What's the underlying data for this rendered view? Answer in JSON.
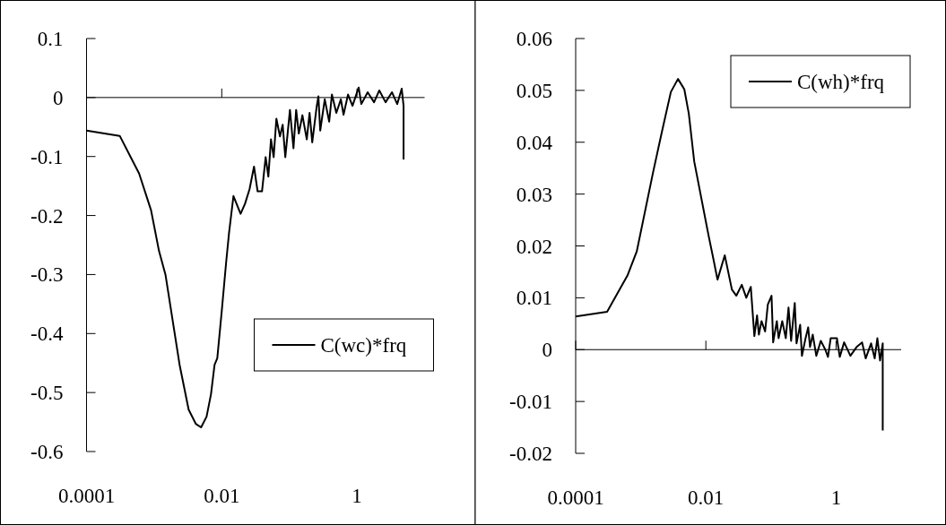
{
  "chart_data": [
    {
      "type": "line",
      "log": "x",
      "xlim": [
        0.0001,
        10
      ],
      "xticks": [
        0.0001,
        0.01,
        1
      ],
      "ylim": [
        -0.6,
        0.1
      ],
      "yticks": [
        -0.6,
        -0.5,
        -0.4,
        -0.3,
        -0.2,
        -0.1,
        0,
        0.1
      ],
      "legend": "bottom right",
      "series": [
        {
          "name": "C(wc)*frq",
          "color": "#000000",
          "x": [
            0.0001,
            0.00031,
            0.0006,
            0.0009,
            0.00118,
            0.00147,
            0.00238,
            0.00324,
            0.00413,
            0.00495,
            0.00596,
            0.00693,
            0.00783,
            0.00859,
            0.01,
            0.0116,
            0.0128,
            0.0149,
            0.019,
            0.0221,
            0.0258,
            0.03,
            0.0339,
            0.0394,
            0.0446,
            0.0489,
            0.0535,
            0.0586,
            0.0643,
            0.0726,
            0.0796,
            0.0871,
            0.102,
            0.115,
            0.126,
            0.138,
            0.156,
            0.181,
            0.199,
            0.218,
            0.254,
            0.269,
            0.286,
            0.334,
            0.388,
            0.426,
            0.495,
            0.578,
            0.633,
            0.738,
            0.859,
            1.06,
            1.16,
            1.44,
            1.79,
            2.14,
            2.65,
            3.29,
            3.94,
            4.59,
            4.89,
            4.89
          ],
          "values": [
            -0.056,
            -0.065,
            -0.129,
            -0.191,
            -0.26,
            -0.3,
            -0.453,
            -0.529,
            -0.553,
            -0.559,
            -0.541,
            -0.503,
            -0.453,
            -0.442,
            -0.362,
            -0.28,
            -0.23,
            -0.167,
            -0.197,
            -0.18,
            -0.155,
            -0.117,
            -0.159,
            -0.159,
            -0.101,
            -0.134,
            -0.071,
            -0.101,
            -0.036,
            -0.066,
            -0.046,
            -0.101,
            -0.021,
            -0.086,
            -0.021,
            -0.061,
            -0.03,
            -0.071,
            -0.026,
            -0.076,
            -0.015,
            0.002,
            -0.056,
            -0.003,
            -0.041,
            0.005,
            -0.026,
            -0.003,
            -0.029,
            0.005,
            -0.014,
            0.017,
            -0.011,
            0.009,
            -0.008,
            0.012,
            -0.008,
            0.009,
            -0.011,
            0.015,
            -0.014,
            -0.105
          ]
        }
      ]
    },
    {
      "type": "line",
      "log": "x",
      "xlim": [
        0.0001,
        10
      ],
      "xticks": [
        0.0001,
        0.01,
        1
      ],
      "ylim": [
        -0.02,
        0.06
      ],
      "yticks": [
        -0.02,
        -0.01,
        0,
        0.01,
        0.02,
        0.03,
        0.04,
        0.05,
        0.06
      ],
      "legend": "top right",
      "series": [
        {
          "name": "C(wh)*frq",
          "color": "#000000",
          "x": [
            0.0001,
            0.000304,
            0.00063,
            0.00087,
            0.00154,
            0.00211,
            0.0029,
            0.00373,
            0.00467,
            0.00547,
            0.00662,
            0.011,
            0.0129,
            0.0151,
            0.0195,
            0.0251,
            0.0294,
            0.0356,
            0.0418,
            0.049,
            0.0556,
            0.0611,
            0.0652,
            0.0716,
            0.0813,
            0.0895,
            0.102,
            0.108,
            0.123,
            0.131,
            0.149,
            0.169,
            0.186,
            0.204,
            0.232,
            0.247,
            0.281,
            0.299,
            0.34,
            0.373,
            0.398,
            0.438,
            0.497,
            0.583,
            0.683,
            0.751,
            0.826,
            1.03,
            1.14,
            1.33,
            1.66,
            2.07,
            2.51,
            2.85,
            3.45,
            3.92,
            4.31,
            4.74,
            5.21,
            5.21
          ],
          "values": [
            0.0064,
            0.0073,
            0.0144,
            0.019,
            0.0341,
            0.042,
            0.0497,
            0.0522,
            0.0502,
            0.0455,
            0.0363,
            0.022,
            0.0178,
            0.0135,
            0.0182,
            0.0116,
            0.0104,
            0.0125,
            0.01,
            0.0121,
            0.0026,
            0.0066,
            0.0029,
            0.0055,
            0.0035,
            0.0087,
            0.0104,
            0.0014,
            0.0055,
            0.0022,
            0.0055,
            0.0022,
            0.0081,
            0.0017,
            0.009,
            0.0012,
            0.0048,
            -0.0012,
            0.0022,
            0.0043,
            0.0005,
            0.0029,
            -0.0012,
            0.0017,
            0,
            -0.0014,
            0.0022,
            0.0022,
            -0.0014,
            0.0014,
            -0.0012,
            0.0005,
            0.0014,
            -0.0017,
            0.0012,
            -0.0017,
            0.0022,
            -0.0021,
            0.0012,
            -0.0156
          ]
        }
      ]
    }
  ]
}
